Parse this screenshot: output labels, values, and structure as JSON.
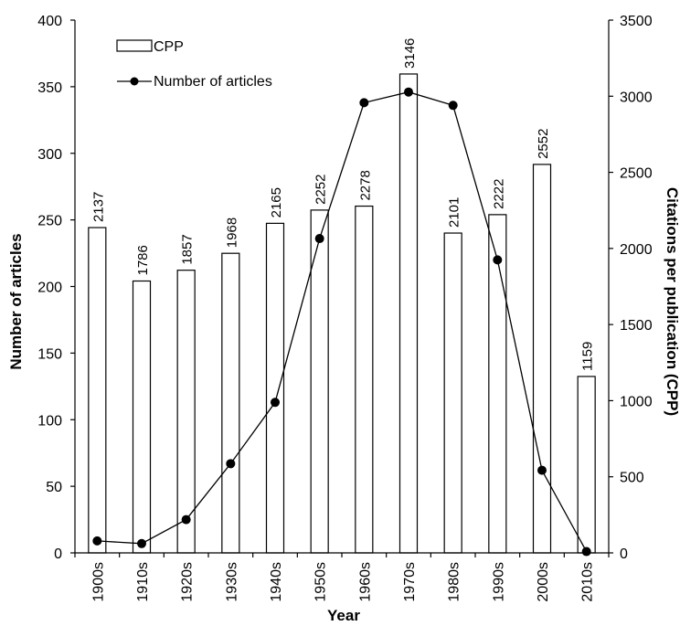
{
  "chart_data": {
    "type": "bar+line",
    "categories": [
      "1900s",
      "1910s",
      "1920s",
      "1930s",
      "1940s",
      "1950s",
      "1960s",
      "1970s",
      "1980s",
      "1990s",
      "2000s",
      "2010s"
    ],
    "series": [
      {
        "name": "CPP",
        "type": "bar",
        "axis": "right",
        "values": [
          2137,
          1786,
          1857,
          1968,
          2165,
          2252,
          2278,
          3146,
          2101,
          2222,
          2552,
          1159
        ],
        "data_labels": [
          "2137",
          "1786",
          "1857",
          "1968",
          "2165",
          "2252",
          "2278",
          "3146",
          "2101",
          "2222",
          "2552",
          "1159"
        ]
      },
      {
        "name": "Number of articles",
        "type": "line",
        "axis": "left",
        "values": [
          9,
          7,
          25,
          67,
          113,
          236,
          338,
          346,
          336,
          220,
          62,
          1
        ]
      }
    ],
    "xlabel": "Year",
    "ylabel_left": "Number of articles",
    "ylabel_right": "Citations per publication (CPP)",
    "ylim_left": [
      0,
      400
    ],
    "ylim_right": [
      0,
      3500
    ],
    "yticks_left": [
      "0",
      "50",
      "100",
      "150",
      "200",
      "250",
      "300",
      "350",
      "400"
    ],
    "yticks_right": [
      "0",
      "500",
      "1000",
      "1500",
      "2000",
      "2500",
      "3000",
      "3500"
    ],
    "grid": false,
    "legend_position": "top-left"
  }
}
